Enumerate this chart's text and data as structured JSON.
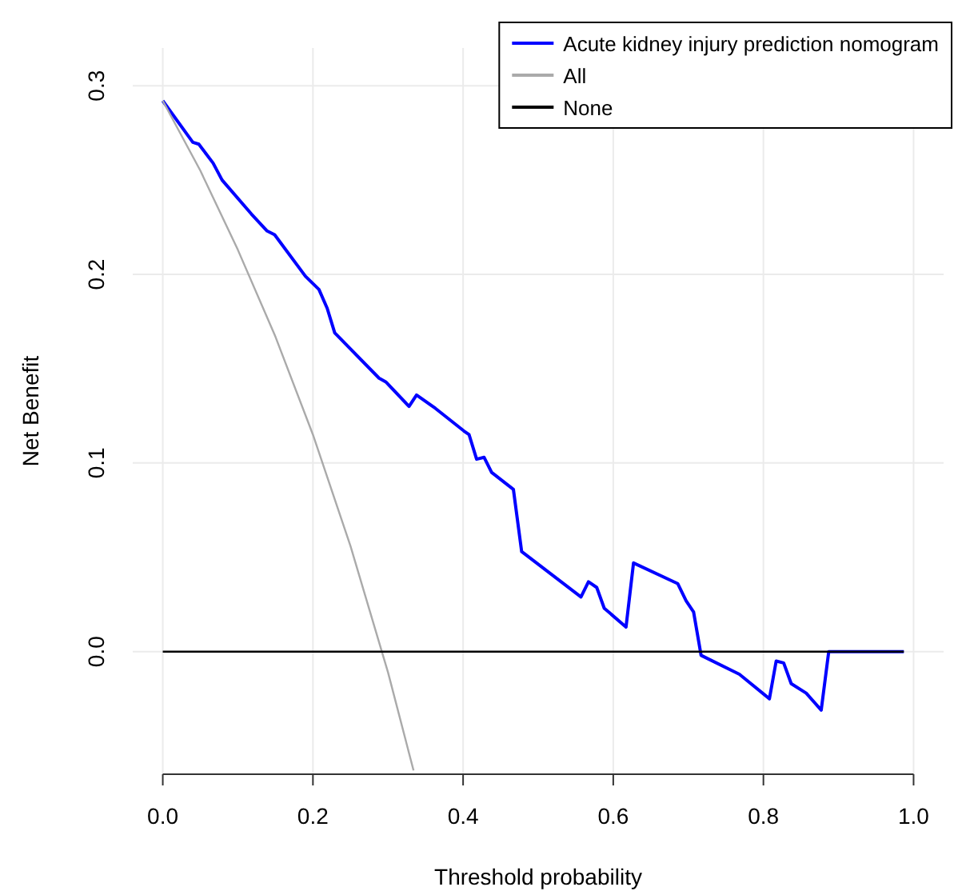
{
  "chart_data": {
    "type": "line",
    "xlabel": "Threshold probability",
    "ylabel": "Net Benefit",
    "xlim": [
      -0.04,
      1.04
    ],
    "ylim": [
      -0.065,
      0.32
    ],
    "xticks": [
      {
        "value": 0,
        "label": "0.0"
      },
      0.2,
      0.4,
      0.6,
      0.8,
      {
        "value": 1,
        "label": "1.0"
      }
    ],
    "yticks": [
      {
        "value": 0,
        "label": "0.0"
      },
      0.1,
      0.2,
      0.3
    ],
    "grid": true,
    "legend": "top right",
    "tick_labels": "xy",
    "series": [
      {
        "name": "Acute kidney injury prediction nomogram",
        "color": "#0000ff",
        "x": [
          0,
          0.04,
          0.048,
          0.067,
          0.079,
          0.118,
          0.139,
          0.149,
          0.19,
          0.208,
          0.219,
          0.229,
          0.288,
          0.297,
          0.328,
          0.338,
          0.363,
          0.401,
          0.408,
          0.418,
          0.428,
          0.438,
          0.467,
          0.478,
          0.557,
          0.567,
          0.578,
          0.588,
          0.617,
          0.627,
          0.686,
          0.697,
          0.707,
          0.717,
          0.768,
          0.808,
          0.817,
          0.827,
          0.837,
          0.857,
          0.877,
          0.887,
          0.987
        ],
        "values": [
          0.292,
          0.27,
          0.269,
          0.259,
          0.25,
          0.232,
          0.223,
          0.221,
          0.199,
          0.192,
          0.182,
          0.169,
          0.145,
          0.143,
          0.13,
          0.136,
          0.129,
          0.117,
          0.115,
          0.102,
          0.103,
          0.095,
          0.086,
          0.053,
          0.029,
          0.037,
          0.034,
          0.023,
          0.013,
          0.047,
          0.036,
          0.027,
          0.021,
          -0.002,
          -0.012,
          -0.025,
          -0.005,
          -0.006,
          -0.017,
          -0.022,
          -0.031,
          0,
          0
        ]
      },
      {
        "name": "All",
        "color": "#aaaaaa",
        "x": [
          0,
          0.05,
          0.1,
          0.15,
          0.2,
          0.25,
          0.3,
          0.334
        ],
        "values": [
          0.292,
          0.255,
          0.213,
          0.167,
          0.115,
          0.056,
          -0.011,
          -0.063
        ]
      },
      {
        "name": "None",
        "color": "#000000",
        "x": [
          0,
          0.987
        ],
        "values": [
          0,
          0
        ]
      }
    ]
  }
}
